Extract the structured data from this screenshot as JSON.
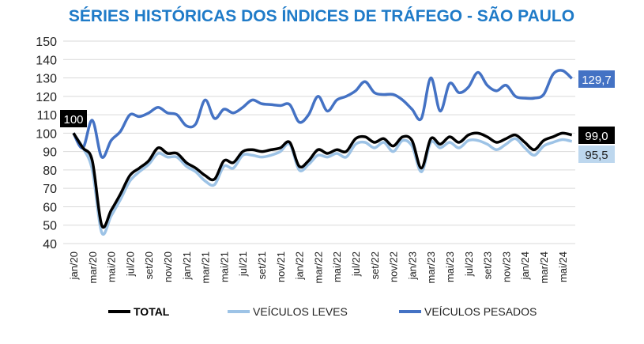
{
  "chart_data": {
    "type": "line",
    "title": "SÉRIES HISTÓRICAS DOS ÍNDICES DE TRÁFEGO - SÃO PAULO",
    "xlabel": "",
    "ylabel": "",
    "ylim": [
      40,
      150
    ],
    "yticks": [
      40,
      50,
      60,
      70,
      80,
      90,
      100,
      110,
      120,
      130,
      140,
      150
    ],
    "grid": true,
    "legend_position": "bottom",
    "x_tick_labels": [
      "jan/20",
      "mar/20",
      "mai/20",
      "jul/20",
      "set/20",
      "nov/20",
      "jan/21",
      "mar/21",
      "mai/21",
      "jul/21",
      "set/21",
      "nov/21",
      "jan/22",
      "mar/22",
      "mai/22",
      "jul/22",
      "set/22",
      "nov/22",
      "jan/23",
      "mar/23",
      "mai/23",
      "jul/23",
      "set/23",
      "nov/23",
      "jan/24",
      "mar/24",
      "mai/24"
    ],
    "x_count": 54,
    "series": [
      {
        "name": "VEÍCULOS PESADOS",
        "color": "#4472C4",
        "values": [
          100,
          92,
          107,
          87,
          96,
          101,
          110,
          109,
          111,
          114,
          111,
          110,
          104,
          105,
          118,
          108,
          113,
          111,
          114,
          118,
          116,
          115.5,
          115,
          115.5,
          106,
          110,
          120,
          112,
          118,
          120,
          123,
          128,
          122,
          121,
          121,
          118,
          113,
          108,
          130,
          112,
          127,
          122,
          125,
          133,
          126,
          123,
          126,
          120,
          119,
          119,
          121,
          132,
          134,
          129.7
        ],
        "end_label": "129,7"
      },
      {
        "name": "VEÍCULOS LEVES",
        "color": "#9DC3E6",
        "values": [
          100,
          92,
          80,
          46,
          55,
          64,
          74,
          79,
          83,
          89,
          87,
          87,
          82,
          79,
          74,
          72,
          82,
          81,
          88,
          88,
          87,
          88,
          90,
          94,
          80,
          83,
          88,
          87,
          89,
          87,
          94,
          95,
          92,
          95,
          90,
          96,
          93,
          79,
          95,
          92,
          95,
          92,
          96,
          96,
          94,
          91,
          94,
          97,
          92,
          88,
          93,
          95,
          96.5,
          95.5
        ],
        "end_label": "95,5"
      },
      {
        "name": "TOTAL",
        "color": "#000000",
        "values": [
          100,
          92,
          85,
          50,
          58,
          67,
          77,
          81,
          85,
          92,
          89,
          89,
          84,
          81,
          77,
          75,
          85,
          84,
          90,
          91,
          90,
          91,
          92,
          95,
          82,
          85,
          91,
          89,
          91,
          90,
          97,
          98,
          95,
          97,
          93,
          98,
          96,
          81,
          97,
          94,
          98,
          95,
          99,
          100,
          98,
          95,
          97,
          99,
          95,
          91,
          96,
          98,
          100,
          99.0
        ],
        "end_label": "99,0",
        "start_label": "100"
      }
    ],
    "legend": [
      "TOTAL",
      "VEÍCULOS LEVES",
      "VEÍCULOS PESADOS"
    ]
  }
}
